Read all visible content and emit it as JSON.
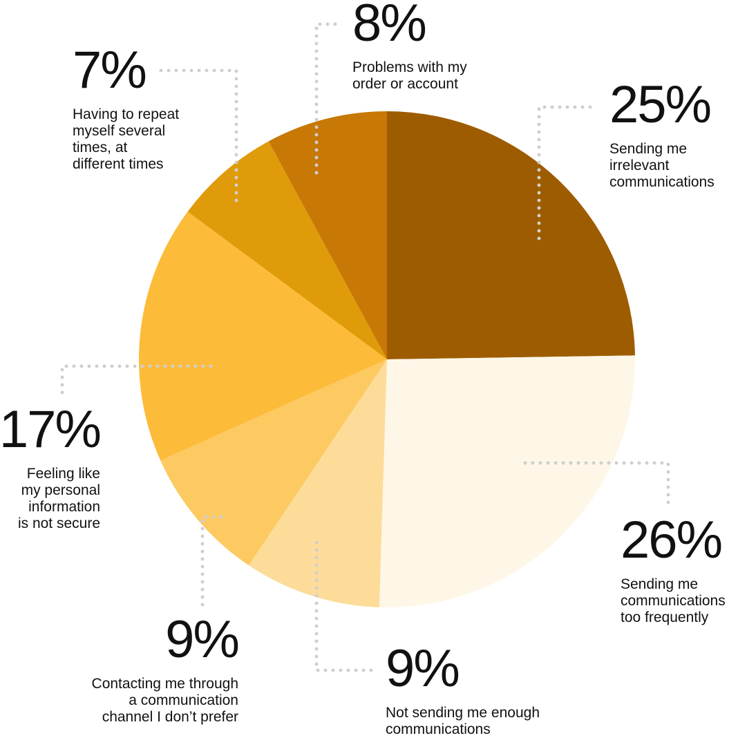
{
  "chart_data": {
    "type": "pie",
    "categories": [
      "Sending me\nirrelevant\ncommunications",
      "Sending me\ncommunications\ntoo frequently",
      "Not sending me enough\ncommunications",
      "Contacting me through\na communication\nchannel I don’t prefer",
      "Feeling like\nmy personal\ninformation\nis not secure",
      "Having to repeat\nmyself several\ntimes, at\ndifferent times",
      "Problems with my\norder or account"
    ],
    "values": [
      25,
      26,
      9,
      9,
      17,
      7,
      8
    ],
    "value_labels": [
      "25%",
      "26%",
      "9%",
      "9%",
      "17%",
      "7%",
      "8%"
    ],
    "colors": [
      "#9e5c00",
      "#fef7e7",
      "#fddc99",
      "#fdc961",
      "#fdbb3a",
      "#e09b0a",
      "#c77805"
    ]
  }
}
